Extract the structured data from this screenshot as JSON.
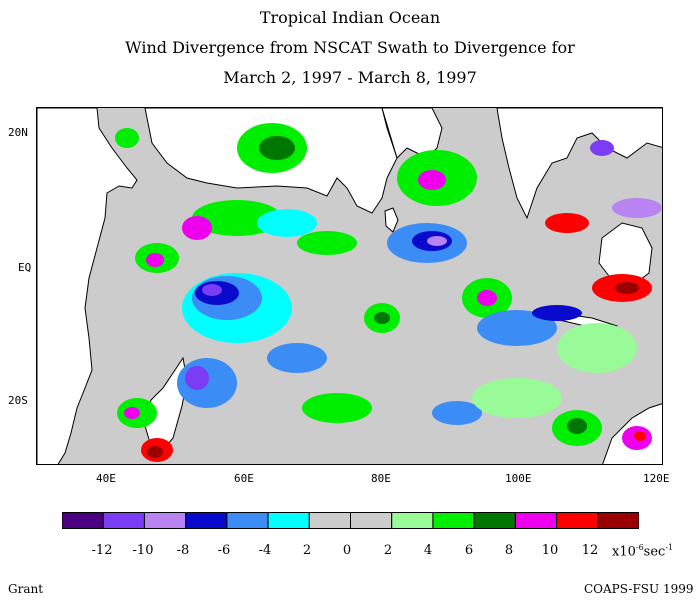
{
  "title": {
    "line1": "Tropical Indian Ocean",
    "line2": "Wind Divergence from NSCAT Swath to Divergence for",
    "line3": "March 2, 1997 - March 8, 1997"
  },
  "axes": {
    "lat_ticks": [
      "20N",
      "EQ",
      "20S"
    ],
    "lon_ticks": [
      "40E",
      "60E",
      "80E",
      "100E",
      "120E"
    ]
  },
  "legend": {
    "labels": [
      "-12",
      "-10",
      "-8",
      "-6",
      "-4",
      "2",
      "0",
      "2",
      "4",
      "6",
      "8",
      "10",
      "12"
    ],
    "units_prefix": "x10",
    "units_exp": "-6",
    "units_suffix": "sec",
    "units_suffix_exp": "-1",
    "colors": [
      "#4b0082",
      "#7b3cf5",
      "#b784f2",
      "#0a0acd",
      "#3b8cf5",
      "#00ffff",
      "#cccccc",
      "#cccccc",
      "#98fb98",
      "#00ee00",
      "#007700",
      "#ee00ee",
      "#ff0000",
      "#9b0000"
    ]
  },
  "footer": {
    "left": "Grant",
    "right": "COAPS-FSU 1999"
  }
}
